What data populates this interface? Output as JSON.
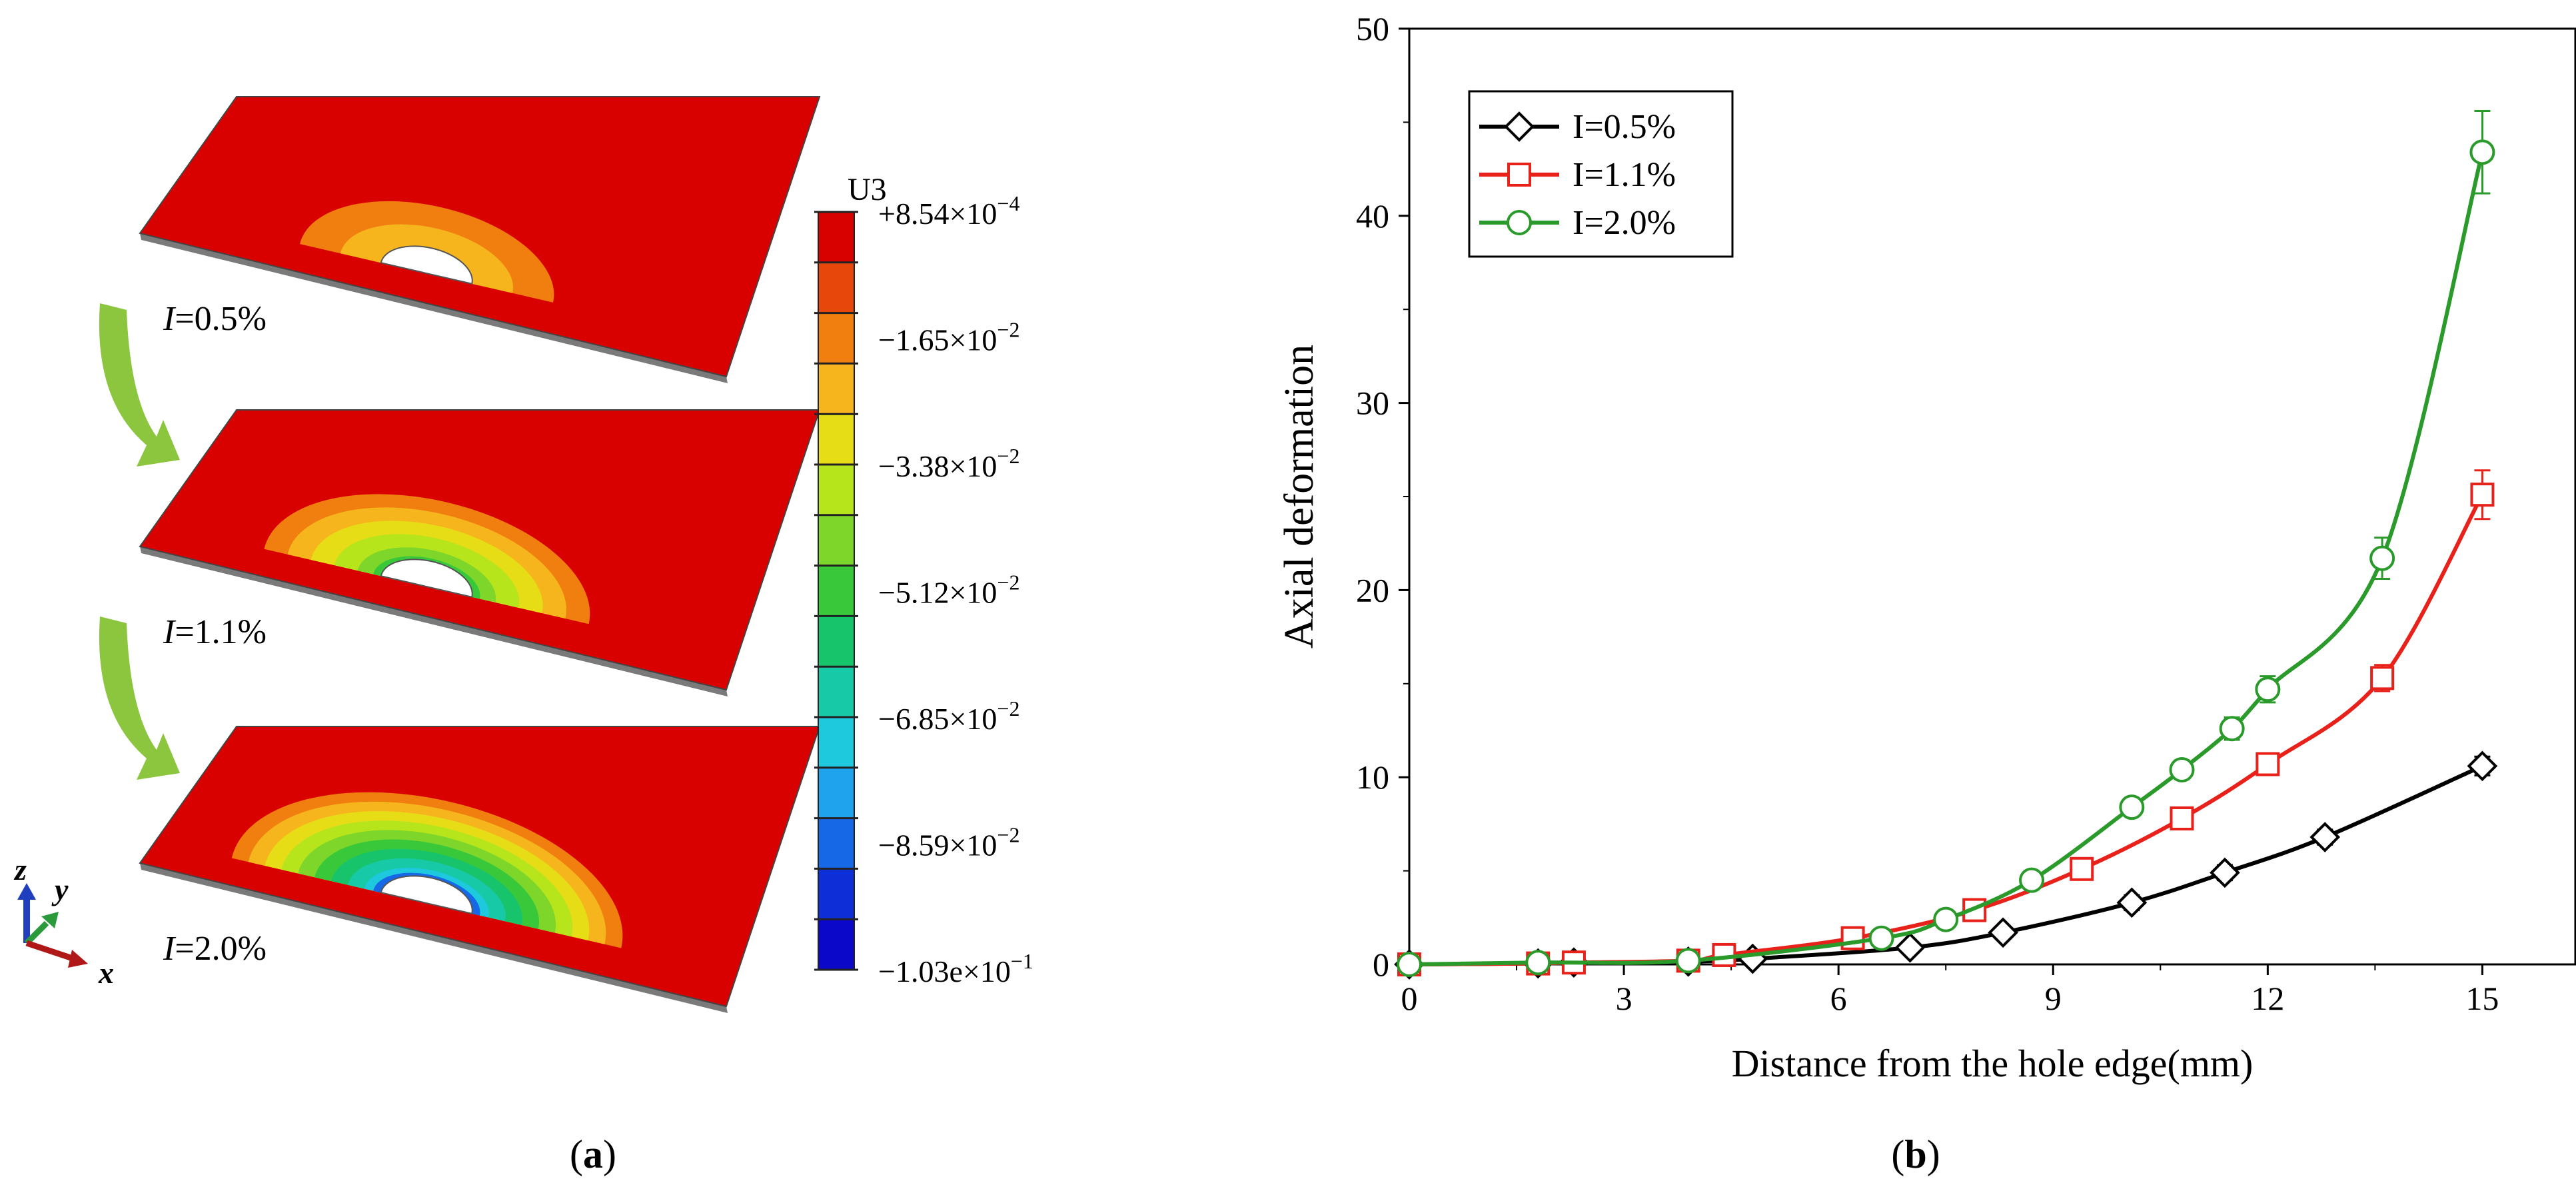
{
  "panel_a": {
    "caption_letter": "a",
    "caption_open": "(",
    "caption_close": ")",
    "colorbar": {
      "title": "U3",
      "colors": [
        "#d90000",
        "#e8470b",
        "#f07f10",
        "#f6b41d",
        "#e7dd17",
        "#b6e51b",
        "#7fd62a",
        "#38c83a",
        "#17c46c",
        "#17c9a6",
        "#1ec9de",
        "#1fa3ec",
        "#1768e6",
        "#0e2fd8",
        "#0b08c9"
      ],
      "labels": [
        {
          "mantissa": "+8.54",
          "times": "×",
          "base": "10",
          "exp": "−4"
        },
        {
          "mantissa": "−1.65",
          "times": "×",
          "base": "10",
          "exp": "−2"
        },
        {
          "mantissa": "−3.38",
          "times": "×",
          "base": "10",
          "exp": "−2"
        },
        {
          "mantissa": "−5.12",
          "times": "×",
          "base": "10",
          "exp": "−2"
        },
        {
          "mantissa": "−6.85",
          "times": "×",
          "base": "10",
          "exp": "−2"
        },
        {
          "mantissa": "−8.59",
          "times": "×",
          "base": "10",
          "exp": "−2"
        },
        {
          "mantissa": "−1.03e",
          "times": "×",
          "base": "10",
          "exp": "−1"
        }
      ]
    },
    "plates": [
      {
        "label_var": "I",
        "label_val": "=0.5%",
        "rings": [
          "#f07f10",
          "#f6b41d"
        ],
        "hole_edge": "#f6b41d"
      },
      {
        "label_var": "I",
        "label_val": "=1.1%",
        "rings": [
          "#f07f10",
          "#f6b41d",
          "#e7dd17",
          "#b6e51b",
          "#7fd62a"
        ],
        "hole_edge": "#38c83a"
      },
      {
        "label_var": "I",
        "label_val": "=2.0%",
        "rings": [
          "#f07f10",
          "#f6b41d",
          "#e7dd17",
          "#b6e51b",
          "#7fd62a",
          "#38c83a",
          "#17c46c",
          "#17c9a6",
          "#1ec9de"
        ],
        "hole_edge": "#1768e6"
      }
    ],
    "plate_color": "#d90000",
    "arrow_color": "#8cc63f",
    "axes_triad": {
      "z": "z",
      "y": "y",
      "x": "x",
      "z_color": "#1f3fbf",
      "y_color": "#2a9a3a",
      "x_color": "#b01818"
    }
  },
  "chart_data": {
    "type": "line",
    "panel_letter": "b",
    "caption_open": "(",
    "caption_close": ")",
    "xlabel": "Distance from the hole edge(mm)",
    "ylabel": "Axial deformation",
    "xlim": [
      0,
      16.3
    ],
    "ylim": [
      0,
      50
    ],
    "xticks": [
      0,
      3,
      6,
      9,
      12,
      15
    ],
    "yticks": [
      0,
      10,
      20,
      30,
      40,
      50
    ],
    "grid": false,
    "legend_position": "top-left",
    "series": [
      {
        "name": "I=0.5%",
        "color": "#000000",
        "marker": "diamond",
        "x": [
          0,
          1.8,
          2.3,
          3.9,
          4.8,
          7.0,
          8.3,
          10.1,
          11.4,
          12.8,
          15.0
        ],
        "y": [
          0,
          0.05,
          0.1,
          0.15,
          0.3,
          0.9,
          1.7,
          3.3,
          4.9,
          6.8,
          10.6
        ],
        "err": [
          0,
          0,
          0,
          0,
          0,
          0.3,
          0.3,
          0.4,
          0.4,
          0.4,
          0.5
        ]
      },
      {
        "name": "I=1.1%",
        "color": "#e8221b",
        "marker": "square",
        "x": [
          0,
          1.8,
          2.3,
          3.9,
          4.4,
          6.2,
          7.9,
          9.4,
          10.8,
          12.0,
          13.6,
          15.0
        ],
        "y": [
          0,
          0.05,
          0.1,
          0.2,
          0.5,
          1.4,
          2.9,
          5.1,
          7.8,
          10.7,
          15.3,
          25.1
        ],
        "err": [
          0,
          0,
          0,
          0,
          0,
          0,
          0,
          0.3,
          0.4,
          0.4,
          0.7,
          1.3
        ]
      },
      {
        "name": "I=2.0%",
        "color": "#2a9a2a",
        "marker": "circle",
        "x": [
          0,
          1.8,
          3.9,
          6.6,
          7.5,
          8.7,
          10.1,
          10.8,
          11.5,
          12.0,
          13.6,
          15.0
        ],
        "y": [
          0,
          0.1,
          0.2,
          1.4,
          2.4,
          4.5,
          8.4,
          10.4,
          12.6,
          14.7,
          21.7,
          43.4
        ],
        "err": [
          0,
          0,
          0,
          0,
          0,
          0,
          0.4,
          0.5,
          0.6,
          0.7,
          1.1,
          2.2
        ]
      }
    ]
  }
}
